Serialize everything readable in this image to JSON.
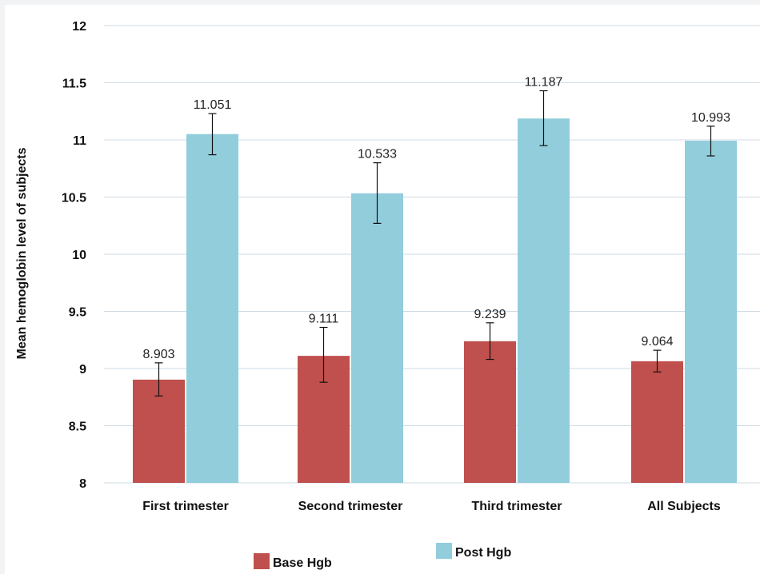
{
  "chart_data": {
    "type": "bar",
    "title": "",
    "xlabel": "",
    "ylabel": "Mean hemoglobin level of subjects",
    "ylim": [
      8,
      12
    ],
    "yticks": [
      8,
      8.5,
      9,
      9.5,
      10,
      10.5,
      11,
      11.5,
      12
    ],
    "ytick_labels": [
      "8",
      "8.5",
      "9",
      "9.5",
      "10",
      "10.5",
      "11",
      "11.5",
      "12"
    ],
    "grid": true,
    "legend": "bottom",
    "categories": [
      "First trimester",
      "Second trimester",
      "Third trimester",
      "All Subjects"
    ],
    "series": [
      {
        "name": "Base Hgb",
        "color": "#c0504d",
        "values": [
          8.903,
          9.111,
          9.239,
          9.064
        ],
        "data_labels": [
          "8.903",
          "9.111",
          "9.239",
          "9.064"
        ],
        "error_low": [
          8.76,
          8.88,
          9.08,
          8.97
        ],
        "error_high": [
          9.05,
          9.36,
          9.4,
          9.16
        ]
      },
      {
        "name": "Post Hgb",
        "color": "#92cddc",
        "values": [
          11.051,
          10.533,
          11.187,
          10.993
        ],
        "data_labels": [
          "11.051",
          "10.533",
          "11.187",
          "10.993"
        ],
        "error_low": [
          10.87,
          10.27,
          10.95,
          10.86
        ],
        "error_high": [
          11.23,
          10.8,
          11.43,
          11.12
        ]
      }
    ]
  }
}
